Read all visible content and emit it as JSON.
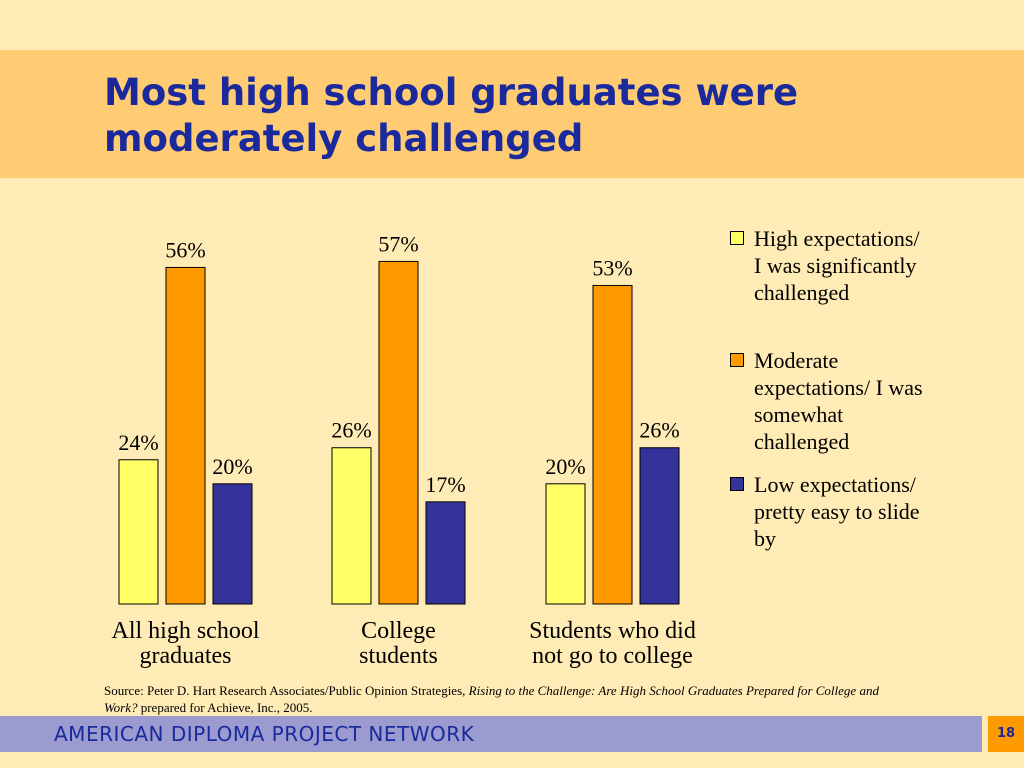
{
  "slide": {
    "title": "Most high school graduates were moderately challenged",
    "footer": "AMERICAN DIPLOMA PROJECT NETWORK",
    "page_number": "18",
    "source": {
      "prefix": "Source: Peter D. Hart Research Associates/Public Opinion Strategies, ",
      "italic": "Rising to the Challenge: Are High School Graduates Prepared for College and Work?",
      "suffix": " prepared for Achieve, Inc., 2005."
    },
    "colors": {
      "background": "#FFEBB5",
      "title_band": "#FFCC73",
      "title_text": "#1A2A9C",
      "footer_band": "#9B9BD0",
      "page_box": "#FF9900"
    }
  },
  "chart_data": {
    "type": "bar",
    "categories": [
      [
        "All high school",
        "graduates"
      ],
      [
        "College",
        "students"
      ],
      [
        "Students who did",
        "not go to college"
      ]
    ],
    "series": [
      {
        "name": "High expectations/ I was significantly challenged",
        "lines": [
          "High expectations/",
          "I was significantly",
          "challenged"
        ],
        "color": "#FFFF66",
        "values": [
          24,
          26,
          20
        ]
      },
      {
        "name": "Moderate expectations/ I was somewhat challenged",
        "lines": [
          "Moderate",
          "expectations/ I was",
          "somewhat",
          "challenged"
        ],
        "color": "#FF9900",
        "values": [
          56,
          57,
          53
        ]
      },
      {
        "name": "Low expectations/ pretty easy to slide by",
        "lines": [
          "Low expectations/",
          "pretty easy to slide",
          "by"
        ],
        "color": "#333399",
        "values": [
          20,
          17,
          26
        ]
      }
    ],
    "value_suffix": "%",
    "ylim": [
      0,
      57
    ],
    "legend_position": "right",
    "grid": false
  }
}
